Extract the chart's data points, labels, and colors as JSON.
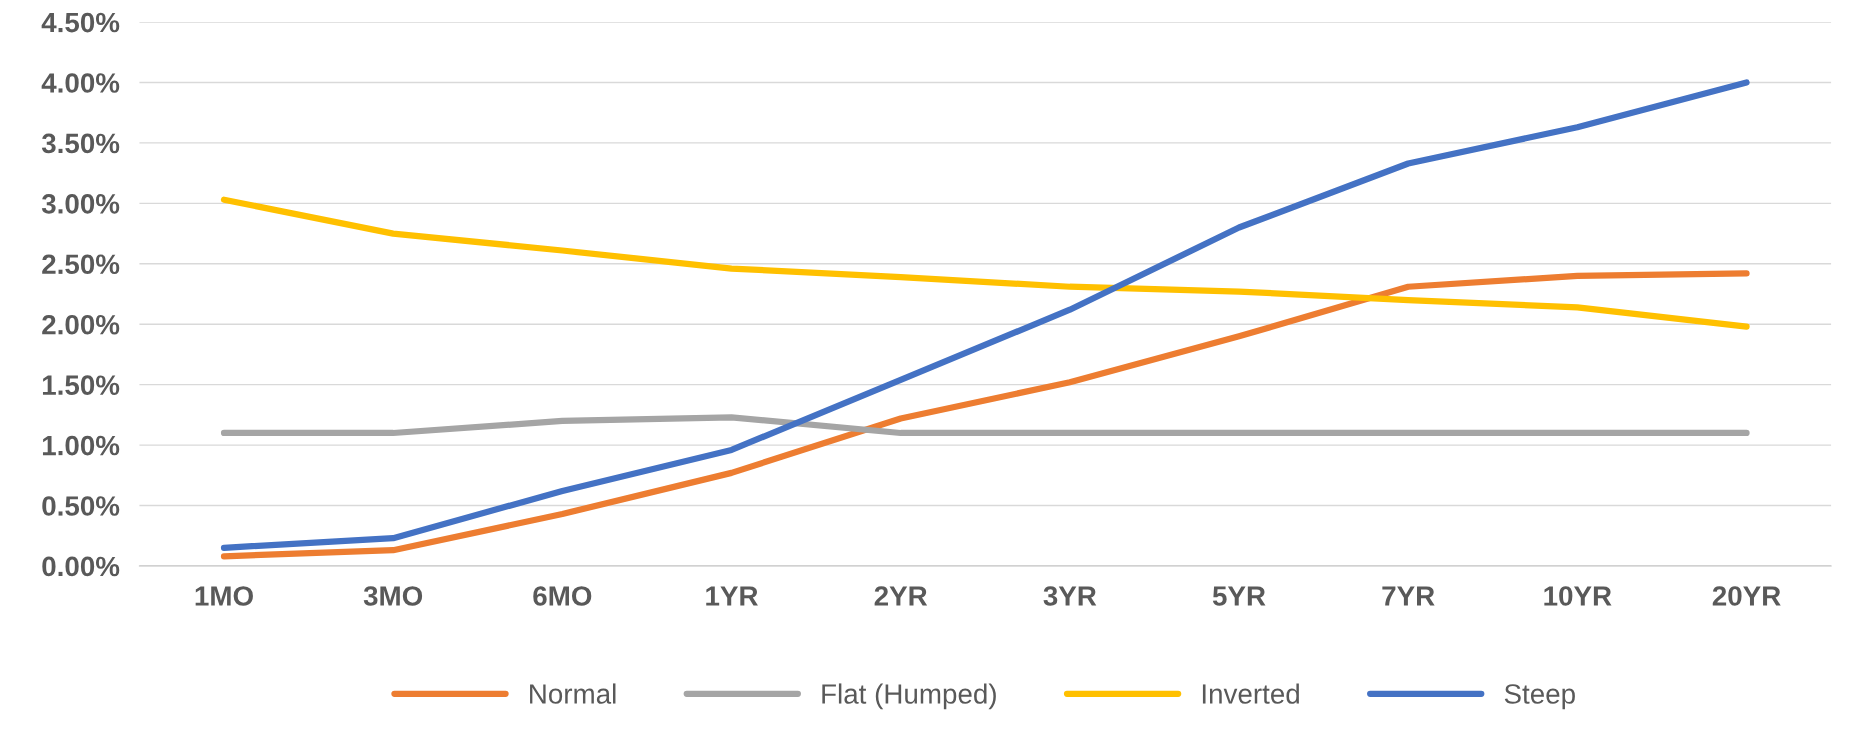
{
  "chart_data": {
    "type": "line",
    "categories": [
      "1MO",
      "3MO",
      "6MO",
      "1YR",
      "2YR",
      "3YR",
      "5YR",
      "7YR",
      "10YR",
      "20YR"
    ],
    "series": [
      {
        "name": "Normal",
        "color": "#ed7d31",
        "values": [
          0.08,
          0.13,
          0.43,
          0.77,
          1.22,
          1.52,
          1.9,
          2.31,
          2.4,
          2.42
        ]
      },
      {
        "name": "Flat (Humped)",
        "color": "#a5a5a5",
        "values": [
          1.1,
          1.1,
          1.2,
          1.23,
          1.1,
          1.1,
          1.1,
          1.1,
          1.1,
          1.1
        ]
      },
      {
        "name": "Inverted",
        "color": "#ffc000",
        "values": [
          3.03,
          2.75,
          2.61,
          2.46,
          2.39,
          2.31,
          2.27,
          2.2,
          2.14,
          1.98
        ]
      },
      {
        "name": "Steep",
        "color": "#4472c4",
        "values": [
          0.15,
          0.23,
          0.62,
          0.96,
          1.54,
          2.12,
          2.8,
          3.33,
          3.63,
          4.0
        ]
      }
    ],
    "ylim": [
      0,
      4.5
    ],
    "yticks": [
      {
        "value": 0,
        "label": "0.00%"
      },
      {
        "value": 0.5,
        "label": "0.50%"
      },
      {
        "value": 1,
        "label": "1.00%"
      },
      {
        "value": 1.5,
        "label": "1.50%"
      },
      {
        "value": 2,
        "label": "2.00%"
      },
      {
        "value": 2.5,
        "label": "2.50%"
      },
      {
        "value": 3,
        "label": "3.00%"
      },
      {
        "value": 3.5,
        "label": "3.50%"
      },
      {
        "value": 4,
        "label": "4.00%"
      },
      {
        "value": 4.5,
        "label": "4.50%"
      }
    ],
    "grid": "y",
    "legend": "bottom",
    "marker": "none",
    "line_style": "solid"
  }
}
